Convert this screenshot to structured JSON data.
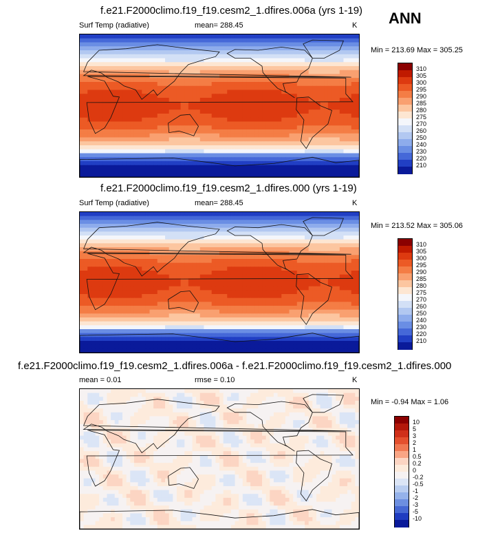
{
  "season": "ANN",
  "panels": [
    {
      "title": "f.e21.F2000climo.f19_f19.cesm2_1.dfires.006a (yrs 1-19)",
      "left_label": "Surf Temp (radiative)",
      "center_label": "mean= 288.45",
      "units": "K",
      "minmax": "Min = 213.69 Max = 305.25",
      "mode": "abs",
      "colorbar_labels": [
        "310",
        "305",
        "300",
        "295",
        "290",
        "285",
        "280",
        "275",
        "270",
        "260",
        "250",
        "240",
        "230",
        "220",
        "210"
      ],
      "colorbar_colors": [
        "#8b0000",
        "#c01a00",
        "#dd3a10",
        "#ec5a25",
        "#f47d45",
        "#f9a070",
        "#fcc6a0",
        "#fde6d2",
        "#f4f6fb",
        "#d3e0f6",
        "#b2c8f1",
        "#8eacec",
        "#6a8ee4",
        "#4568d8",
        "#213fc4",
        "#0a1a9a"
      ]
    },
    {
      "title": "f.e21.F2000climo.f19_f19.cesm2_1.dfires.000 (yrs 1-19)",
      "left_label": "Surf Temp (radiative)",
      "center_label": "mean= 288.45",
      "units": "K",
      "minmax": "Min = 213.52 Max = 305.06",
      "mode": "abs",
      "colorbar_labels": [
        "310",
        "305",
        "300",
        "295",
        "290",
        "285",
        "280",
        "275",
        "270",
        "260",
        "250",
        "240",
        "230",
        "220",
        "210"
      ],
      "colorbar_colors": [
        "#8b0000",
        "#c01a00",
        "#dd3a10",
        "#ec5a25",
        "#f47d45",
        "#f9a070",
        "#fcc6a0",
        "#fde6d2",
        "#f4f6fb",
        "#d3e0f6",
        "#b2c8f1",
        "#8eacec",
        "#6a8ee4",
        "#4568d8",
        "#213fc4",
        "#0a1a9a"
      ]
    },
    {
      "title": "f.e21.F2000climo.f19_f19.cesm2_1.dfires.006a - f.e21.F2000climo.f19_f19.cesm2_1.dfires.000",
      "left_label": "mean =   0.01",
      "center_label": "rmse =   0.10",
      "units": "K",
      "minmax": "Min =  -0.94 Max =   1.06",
      "mode": "diff",
      "colorbar_labels": [
        "10",
        "5",
        "3",
        "2",
        "1",
        "0.5",
        "0.2",
        "0",
        "-0.2",
        "-0.5",
        "-1",
        "-2",
        "-3",
        "-5",
        "-10"
      ],
      "colorbar_colors": [
        "#8b0000",
        "#b3180a",
        "#d0301a",
        "#e4502e",
        "#f07852",
        "#f9a585",
        "#fcd5c3",
        "#fdebdc",
        "#f6f2f2",
        "#dbe5f6",
        "#b9cdf0",
        "#95b2ea",
        "#6d8fe0",
        "#4668d3",
        "#1f3cc0",
        "#0a1a9a"
      ]
    }
  ]
}
